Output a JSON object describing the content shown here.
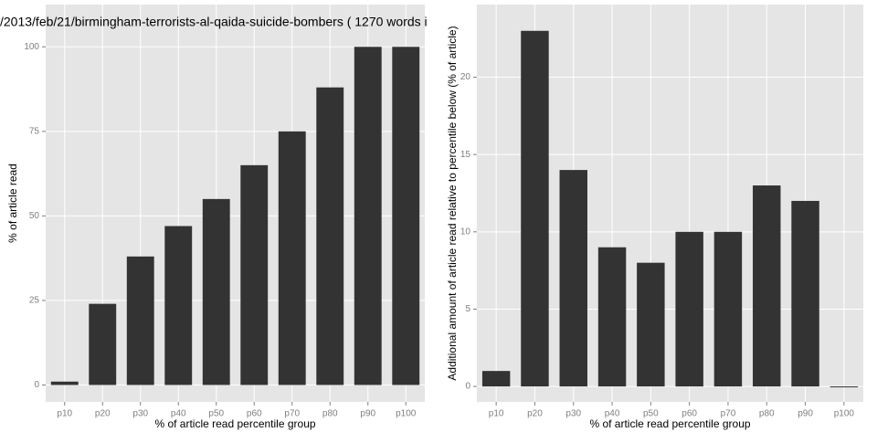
{
  "chart_data": [
    {
      "type": "bar",
      "title": "/2013/feb/21/birmingham-terrorists-al-qaida-suicide-bombers ( 1270 words i",
      "x_label": "% of article read percentile group",
      "y_label": "% of article read",
      "categories": [
        "p10",
        "p20",
        "p30",
        "p40",
        "p50",
        "p60",
        "p70",
        "p80",
        "p90",
        "p100"
      ],
      "values": [
        1,
        24,
        38,
        47,
        55,
        65,
        75,
        88,
        100,
        100
      ],
      "color": "#333333",
      "ylim": [
        -5,
        112.5
      ],
      "yticks": [
        0,
        25,
        50,
        75,
        100
      ],
      "grid": true
    },
    {
      "type": "bar",
      "x_label": "% of article read percentile group",
      "y_label": "Additional amount of article read relative to percentile below (% of article)",
      "categories": [
        "p10",
        "p20",
        "p30",
        "p40",
        "p50",
        "p60",
        "p70",
        "p80",
        "p90",
        "p100"
      ],
      "values": [
        1,
        23,
        14,
        9,
        8,
        10,
        10,
        13,
        12,
        0
      ],
      "color": "#333333",
      "ylim": [
        -1,
        24.7
      ],
      "yticks": [
        0,
        5,
        10,
        15,
        20
      ],
      "grid": true
    }
  ]
}
